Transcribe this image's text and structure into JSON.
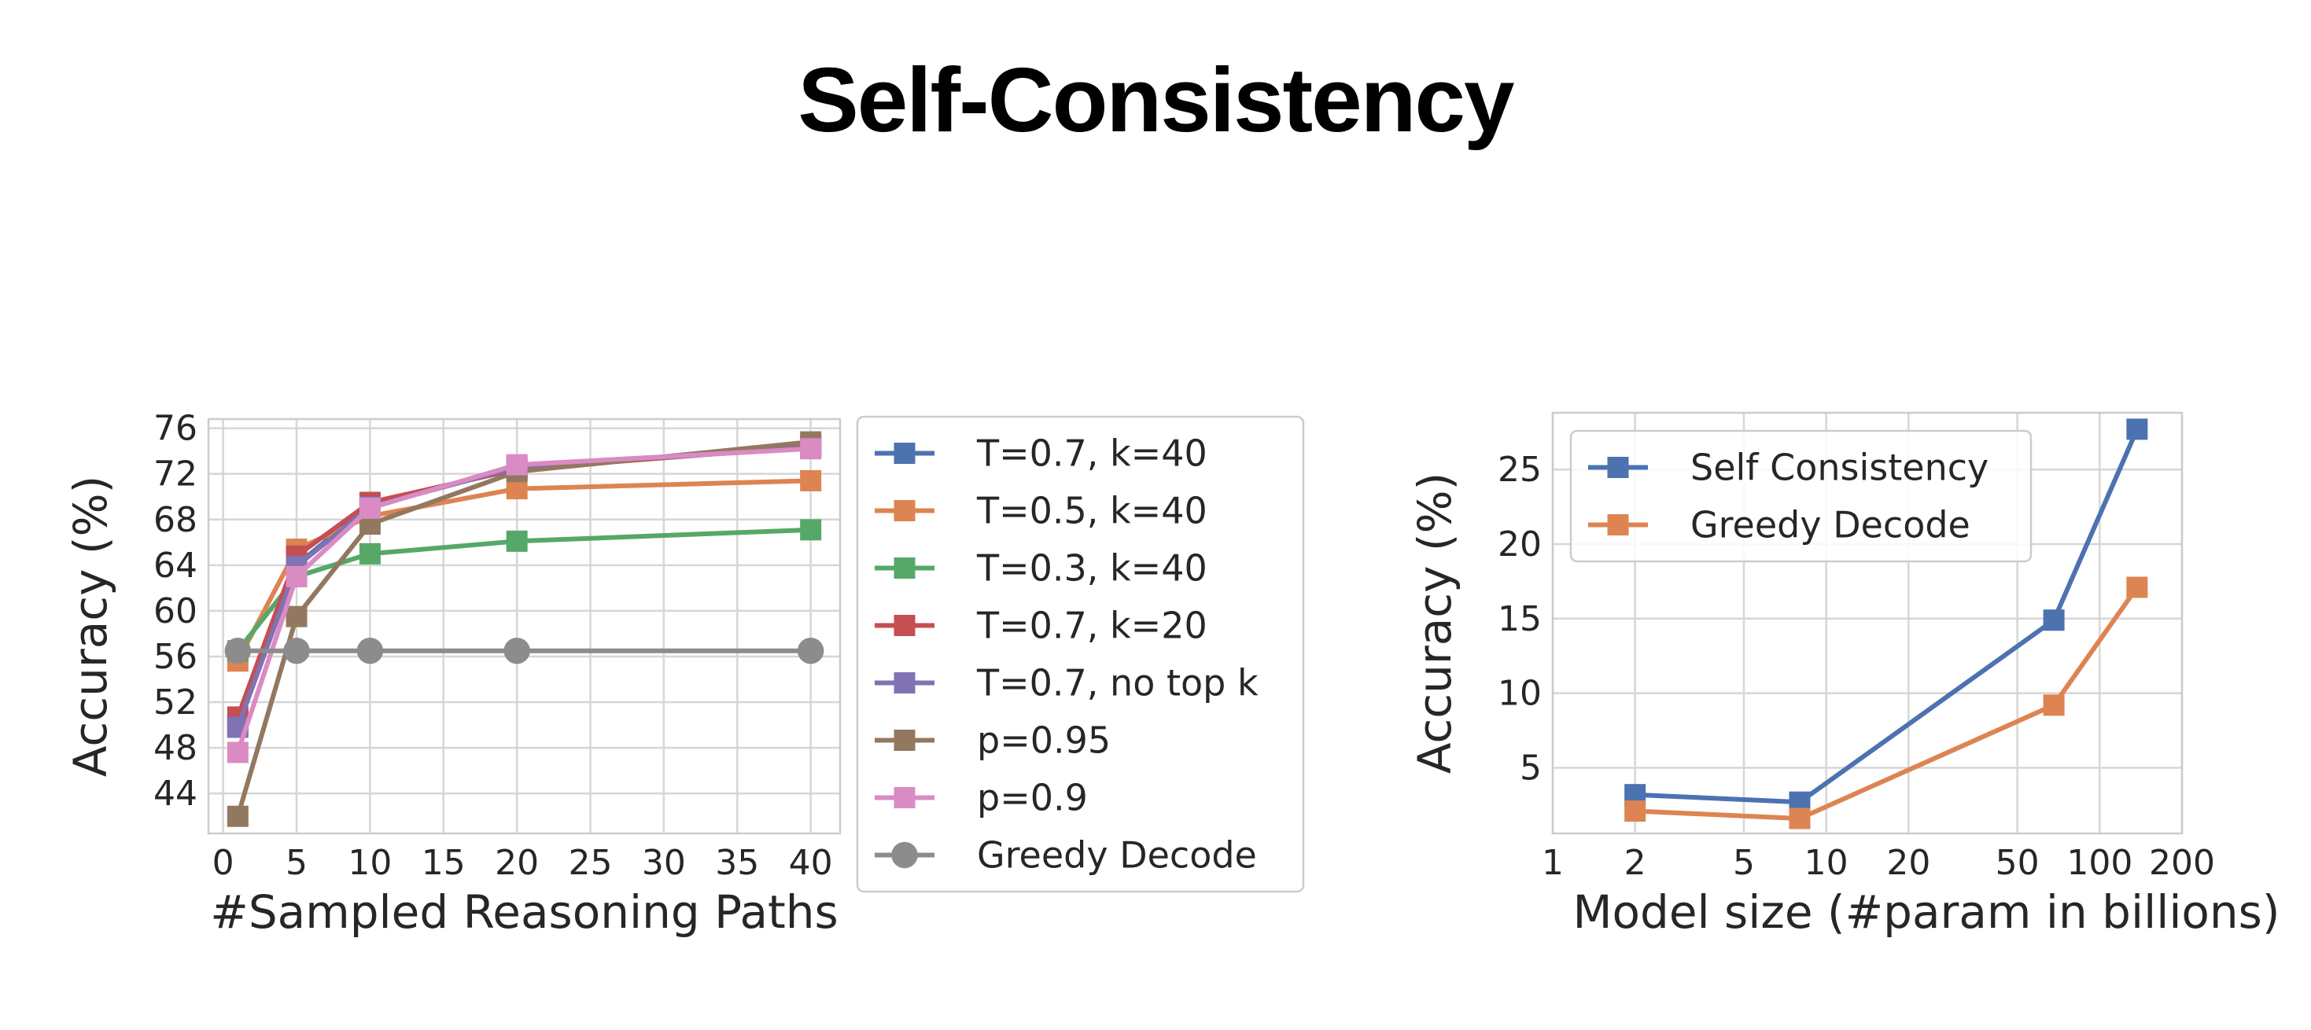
{
  "slide": {
    "title": "Self-Consistency"
  },
  "chart_data": [
    {
      "type": "line",
      "xlabel": "#Sampled Reasoning Paths",
      "ylabel": "Accuracy (%)",
      "xlim": [
        -1,
        42
      ],
      "ylim": [
        40.5,
        76.8
      ],
      "xticks": [
        0,
        5,
        10,
        15,
        20,
        25,
        30,
        35,
        40
      ],
      "yticks": [
        44,
        48,
        52,
        56,
        60,
        64,
        68,
        72,
        76
      ],
      "grid": true,
      "legend_position": "outside-right",
      "series": [
        {
          "name": "T=0.7, k=40",
          "color": "#4c72b0",
          "marker": "square",
          "x": [
            1,
            5,
            10,
            20,
            40
          ],
          "y": [
            50.0,
            64.0,
            69.3,
            72.5,
            74.4
          ]
        },
        {
          "name": "T=0.5, k=40",
          "color": "#dd8452",
          "marker": "square",
          "x": [
            1,
            5,
            10,
            20,
            40
          ],
          "y": [
            55.6,
            65.4,
            68.3,
            70.7,
            71.4
          ]
        },
        {
          "name": "T=0.3, k=40",
          "color": "#55a868",
          "marker": "square",
          "x": [
            1,
            5,
            10,
            20,
            40
          ],
          "y": [
            56.5,
            63.0,
            65.0,
            66.1,
            67.1
          ]
        },
        {
          "name": "T=0.7, k=20",
          "color": "#c44e52",
          "marker": "square",
          "x": [
            1,
            5,
            10,
            20,
            40
          ],
          "y": [
            50.7,
            64.8,
            69.5,
            72.4,
            74.4
          ]
        },
        {
          "name": "T=0.7, no top k",
          "color": "#8172b3",
          "marker": "square",
          "x": [
            1,
            5,
            10,
            20,
            40
          ],
          "y": [
            49.8,
            63.9,
            69.1,
            72.6,
            74.3
          ]
        },
        {
          "name": "p=0.95",
          "color": "#937860",
          "marker": "square",
          "x": [
            1,
            5,
            10,
            20,
            40
          ],
          "y": [
            42.0,
            59.5,
            67.6,
            72.2,
            74.8
          ]
        },
        {
          "name": "p=0.9",
          "color": "#da8bc3",
          "marker": "square",
          "x": [
            1,
            5,
            10,
            20,
            40
          ],
          "y": [
            47.6,
            63.0,
            69.0,
            72.8,
            74.2
          ]
        },
        {
          "name": "Greedy Decode",
          "color": "#8c8c8c",
          "marker": "circle",
          "x": [
            1,
            5,
            10,
            20,
            40
          ],
          "y": [
            56.5,
            56.5,
            56.5,
            56.5,
            56.5
          ]
        }
      ]
    },
    {
      "type": "line",
      "xlabel": "Model size (#param in billions)",
      "ylabel": "Accuracy (%)",
      "xscale": "log",
      "xlim": [
        1,
        200
      ],
      "ylim": [
        0.6,
        28.8
      ],
      "xticks": [
        1,
        2,
        5,
        10,
        20,
        50,
        100,
        200
      ],
      "yticks": [
        5,
        10,
        15,
        20,
        25
      ],
      "grid": true,
      "legend_position": "top-left",
      "series": [
        {
          "name": "Self Consistency",
          "color": "#4c72b0",
          "marker": "square",
          "x": [
            2,
            8,
            68,
            137
          ],
          "y": [
            3.2,
            2.7,
            14.9,
            27.7
          ]
        },
        {
          "name": "Greedy Decode",
          "color": "#dd8452",
          "marker": "square",
          "x": [
            2,
            8,
            68,
            137
          ],
          "y": [
            2.1,
            1.6,
            9.2,
            17.1
          ]
        }
      ]
    }
  ]
}
